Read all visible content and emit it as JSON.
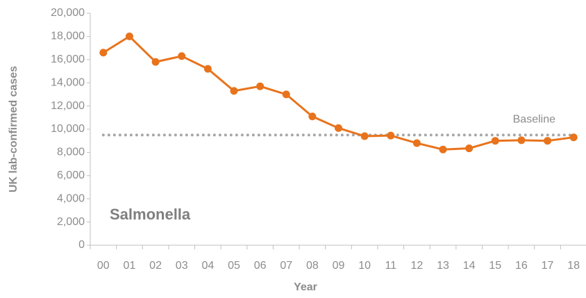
{
  "chart_data": {
    "type": "line",
    "annotation": "Salmonella",
    "xlabel": "Year",
    "ylabel": "UK lab-confirmed cases",
    "categories": [
      "00",
      "01",
      "02",
      "03",
      "04",
      "05",
      "06",
      "07",
      "08",
      "09",
      "10",
      "11",
      "12",
      "13",
      "14",
      "15",
      "16",
      "17",
      "18"
    ],
    "series": [
      {
        "name": "Salmonella",
        "color": "#e8731c",
        "values": [
          16600,
          18000,
          15800,
          16300,
          15200,
          13300,
          13700,
          13000,
          11100,
          10100,
          9400,
          9450,
          8800,
          8250,
          8350,
          9000,
          9050,
          9000,
          9300
        ]
      }
    ],
    "baseline": {
      "value": 9500,
      "label": "Baseline",
      "color": "#a6a6a6"
    },
    "ylim": [
      0,
      20000
    ],
    "yticks": [
      {
        "value": 0,
        "label": "0"
      },
      {
        "value": 2000,
        "label": "2,000"
      },
      {
        "value": 4000,
        "label": "4,000"
      },
      {
        "value": 6000,
        "label": "6,000"
      },
      {
        "value": 8000,
        "label": "8,000"
      },
      {
        "value": 10000,
        "label": "10,000"
      },
      {
        "value": 12000,
        "label": "12,000"
      },
      {
        "value": 14000,
        "label": "14,000"
      },
      {
        "value": 16000,
        "label": "16,000"
      },
      {
        "value": 18000,
        "label": "18,000"
      },
      {
        "value": 20000,
        "label": "20,000"
      }
    ],
    "grid": false
  }
}
